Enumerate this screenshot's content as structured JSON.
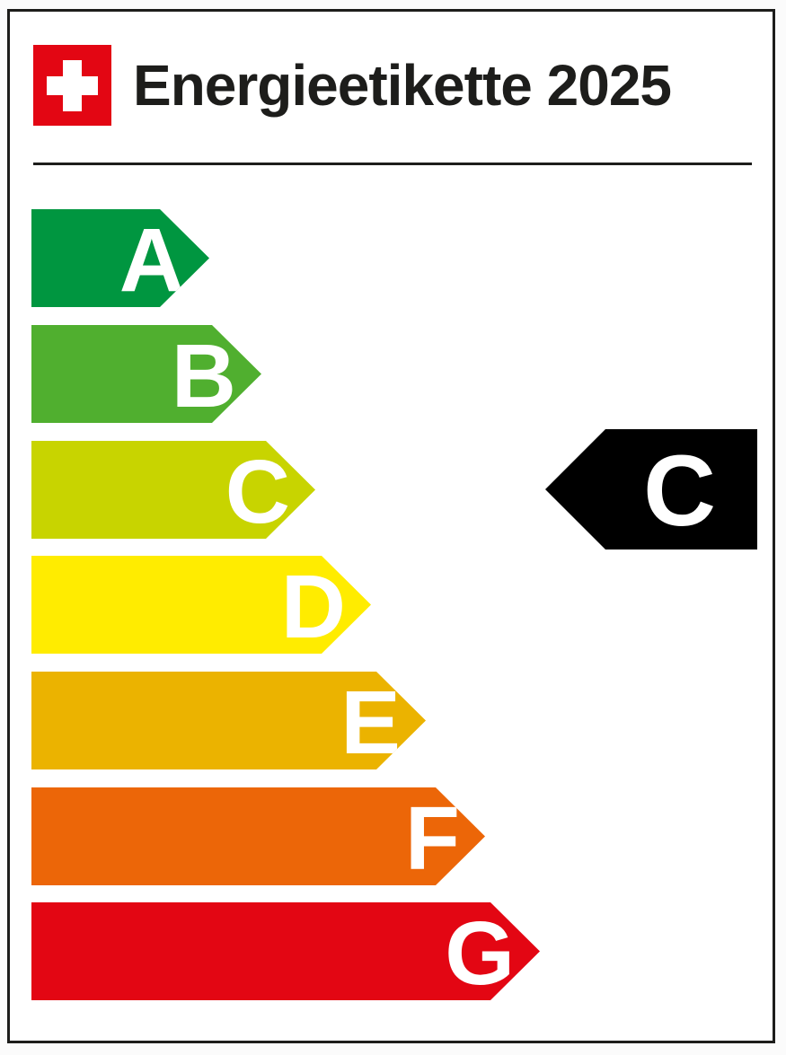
{
  "label": {
    "title": "Energieetikette 2025",
    "flag": {
      "name": "swiss-flag",
      "color": "#e30613",
      "cross_color": "#ffffff"
    },
    "border_color": "#1d1d1b"
  },
  "scale": {
    "letter_color": "#ffffff",
    "grades": [
      {
        "label": "A",
        "color": "#009640"
      },
      {
        "label": "B",
        "color": "#50af2f"
      },
      {
        "label": "C",
        "color": "#c8d400"
      },
      {
        "label": "D",
        "color": "#ffec00"
      },
      {
        "label": "E",
        "color": "#ebb300"
      },
      {
        "label": "F",
        "color": "#ec6608"
      },
      {
        "label": "G",
        "color": "#e30613"
      }
    ]
  },
  "rating": {
    "grade": "C",
    "arrow_color": "#000000",
    "text_color": "#ffffff",
    "direction": "left"
  }
}
